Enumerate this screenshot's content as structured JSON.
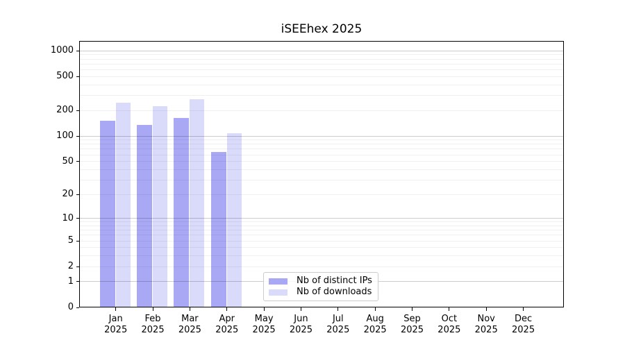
{
  "chart_data": {
    "type": "bar",
    "title": "iSEEhex 2025",
    "yscale": "log10(1+y)",
    "ylim": [
      0,
      1300
    ],
    "grid": true,
    "grid_style": "horizontal; darker lines at decades 1,10,100,1000; faint minor lines at 2-9, 20-90, 200-900",
    "yticks": [
      1000,
      500,
      200,
      100,
      50,
      20,
      10,
      5,
      2,
      1,
      0
    ],
    "categories": [
      "Jan",
      "Feb",
      "Mar",
      "Apr",
      "May",
      "Jun",
      "Jul",
      "Aug",
      "Sep",
      "Oct",
      "Nov",
      "Dec"
    ],
    "year": "2025",
    "xlabel": "",
    "ylabel": "",
    "legend_position": "lower center (inside axes)",
    "series": [
      {
        "name": "Nb of distinct IPs",
        "key": "distinct-ips",
        "color": "#a8a8f4",
        "values": [
          152,
          135,
          162,
          65,
          null,
          null,
          null,
          null,
          null,
          null,
          null,
          null
        ]
      },
      {
        "name": "Nb of downloads",
        "key": "downloads",
        "color": "#dadafb",
        "values": [
          248,
          226,
          272,
          107,
          null,
          null,
          null,
          null,
          null,
          null,
          null,
          null
        ]
      }
    ]
  }
}
